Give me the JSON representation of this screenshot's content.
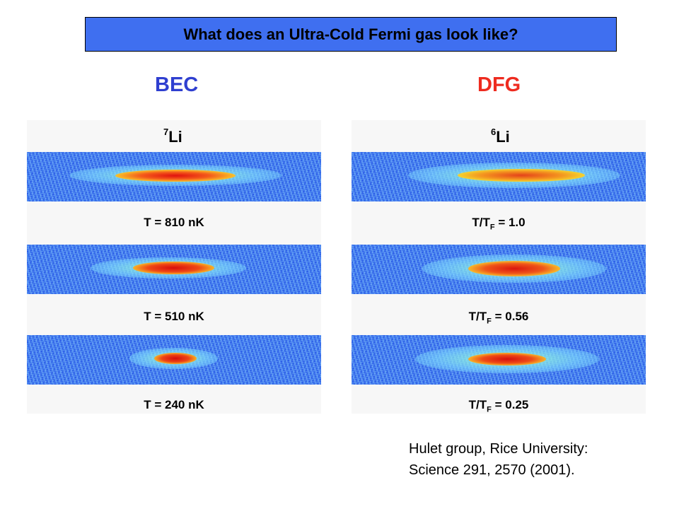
{
  "title": "What does an Ultra-Cold Fermi gas look like?",
  "columns": {
    "bec": {
      "heading": "BEC",
      "isotope_mass": "7",
      "isotope_symbol": "Li",
      "captions": [
        "T = 810 nK",
        "T = 510 nK",
        "T = 240 nK"
      ]
    },
    "dfg": {
      "heading": "DFG",
      "isotope_mass": "6",
      "isotope_symbol": "Li",
      "caption_prefix": "T/T",
      "caption_sub": "F",
      "caption_values": [
        "= 1.0",
        "= 0.56",
        "= 0.25"
      ]
    }
  },
  "credit": {
    "line1": "Hulet group, Rice University:",
    "line2": "Science 291, 2570 (2001)."
  },
  "colors": {
    "title_box": "#3f6ff0",
    "bec_heading": "#2f3fd0",
    "dfg_heading": "#ee2b1f",
    "strip_background": "#3a73ec"
  }
}
